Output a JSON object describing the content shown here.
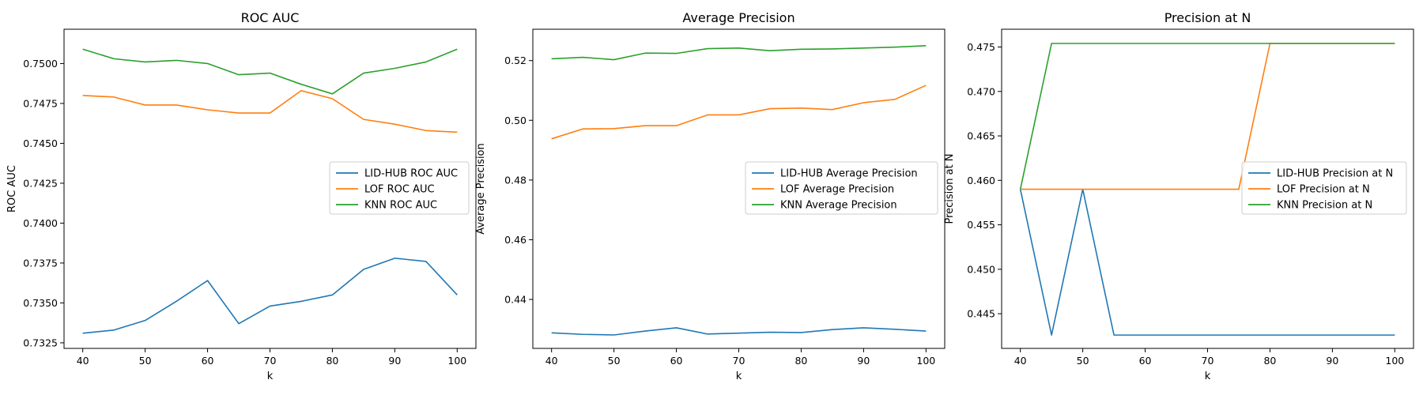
{
  "chart_data": [
    {
      "type": "line",
      "title": "ROC AUC",
      "xlabel": "k",
      "ylabel": "ROC AUC",
      "x": [
        40,
        45,
        50,
        55,
        60,
        65,
        70,
        75,
        80,
        85,
        90,
        95,
        100
      ],
      "xlim": [
        37,
        103
      ],
      "ylim": [
        0.73215,
        0.75215
      ],
      "xticks": [
        40,
        50,
        60,
        70,
        80,
        90,
        100
      ],
      "yticks": [
        0.7325,
        0.735,
        0.7375,
        0.74,
        0.7425,
        0.745,
        0.7475,
        0.75
      ],
      "ytick_format": 4,
      "legend_position": "center-right",
      "series": [
        {
          "name": "LID-HUB ROC AUC",
          "color": "#1f77b4",
          "values": [
            0.7331,
            0.7333,
            0.7339,
            0.7351,
            0.7364,
            0.7337,
            0.7348,
            0.7351,
            0.7355,
            0.7371,
            0.7378,
            0.7376,
            0.7355
          ]
        },
        {
          "name": "LOF ROC AUC",
          "color": "#ff7f0e",
          "values": [
            0.748,
            0.7479,
            0.7474,
            0.7474,
            0.7471,
            0.7469,
            0.7469,
            0.7483,
            0.7478,
            0.7465,
            0.7462,
            0.7458,
            0.7457
          ]
        },
        {
          "name": "KNN ROC AUC",
          "color": "#2ca02c",
          "values": [
            0.7509,
            0.7503,
            0.7501,
            0.7502,
            0.75,
            0.7493,
            0.7494,
            0.7487,
            0.7481,
            0.7494,
            0.7497,
            0.7501,
            0.7509
          ]
        }
      ]
    },
    {
      "type": "line",
      "title": "Average Precision",
      "xlabel": "k",
      "ylabel": "Average Precision",
      "x": [
        40,
        45,
        50,
        55,
        60,
        65,
        70,
        75,
        80,
        85,
        90,
        95,
        100
      ],
      "xlim": [
        37,
        103
      ],
      "ylim": [
        0.4236,
        0.5305
      ],
      "xticks": [
        40,
        50,
        60,
        70,
        80,
        90,
        100
      ],
      "yticks": [
        0.44,
        0.46,
        0.48,
        0.5,
        0.52
      ],
      "ytick_format": 2,
      "legend_position": "center-right",
      "series": [
        {
          "name": "LID-HUB Average Precision",
          "color": "#1f77b4",
          "values": [
            0.4288,
            0.4283,
            0.4281,
            0.4294,
            0.4305,
            0.4284,
            0.4287,
            0.429,
            0.4289,
            0.4299,
            0.4305,
            0.43,
            0.4294
          ]
        },
        {
          "name": "LOF Average Precision",
          "color": "#ff7f0e",
          "values": [
            0.4938,
            0.4971,
            0.4972,
            0.4982,
            0.4982,
            0.5018,
            0.5018,
            0.5039,
            0.5041,
            0.5036,
            0.5059,
            0.507,
            0.5117
          ]
        },
        {
          "name": "KNN Average Precision",
          "color": "#2ca02c",
          "values": [
            0.5206,
            0.5211,
            0.5203,
            0.5225,
            0.5224,
            0.524,
            0.5242,
            0.5233,
            0.5238,
            0.5239,
            0.5242,
            0.5245,
            0.525
          ]
        }
      ]
    },
    {
      "type": "line",
      "title": "Precision at N",
      "xlabel": "k",
      "ylabel": "Precision at N",
      "x": [
        40,
        45,
        50,
        55,
        60,
        65,
        70,
        75,
        80,
        85,
        90,
        95,
        100
      ],
      "xlim": [
        37,
        103
      ],
      "ylim": [
        0.4411,
        0.477
      ],
      "xticks": [
        40,
        50,
        60,
        70,
        80,
        90,
        100
      ],
      "yticks": [
        0.445,
        0.45,
        0.455,
        0.46,
        0.465,
        0.47,
        0.475
      ],
      "ytick_format": 3,
      "legend_position": "center-right",
      "series": [
        {
          "name": "LID-HUB Precision at N",
          "color": "#1f77b4",
          "values": [
            0.459,
            0.4426,
            0.459,
            0.4426,
            0.4426,
            0.4426,
            0.4426,
            0.4426,
            0.4426,
            0.4426,
            0.4426,
            0.4426,
            0.4426
          ]
        },
        {
          "name": "LOF Precision at N",
          "color": "#ff7f0e",
          "values": [
            0.459,
            0.459,
            0.459,
            0.459,
            0.459,
            0.459,
            0.459,
            0.459,
            0.4754,
            0.4754,
            0.4754,
            0.4754,
            0.4754
          ]
        },
        {
          "name": "KNN Precision at N",
          "color": "#2ca02c",
          "values": [
            0.459,
            0.4754,
            0.4754,
            0.4754,
            0.4754,
            0.4754,
            0.4754,
            0.4754,
            0.4754,
            0.4754,
            0.4754,
            0.4754,
            0.4754
          ]
        }
      ]
    }
  ]
}
